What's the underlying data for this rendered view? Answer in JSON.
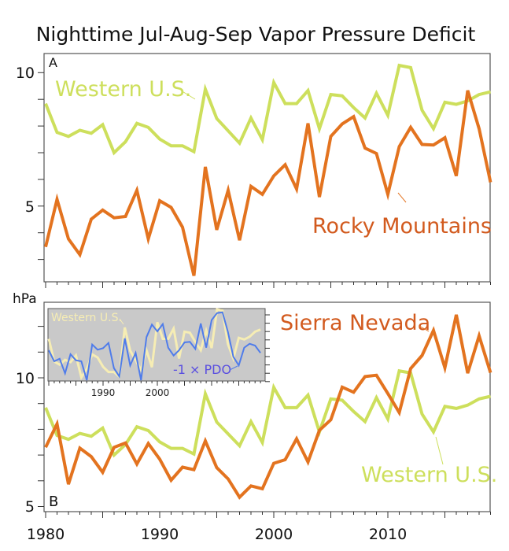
{
  "title": "Nighttime Jul-Aug-Sep Vapor Pressure Deficit",
  "y_unit": "hPa",
  "colors": {
    "western": "#cddf5c",
    "orange": "#e3731f",
    "orange_text": "#d25a1e",
    "inset_bg": "#c9c9c9",
    "inset_western": "#f6edb4",
    "pdo": "#4f7cea",
    "pdo_text": "#5a4fe0"
  },
  "chart_data": [
    {
      "type": "line",
      "panel_label": "A",
      "title": "Nighttime Jul-Aug-Sep Vapor Pressure Deficit",
      "ylabel": "hPa",
      "ylim": [
        2.2,
        10.7
      ],
      "xlim": [
        1980,
        2019
      ],
      "yticks": [
        {
          "value": 10,
          "label": "10"
        },
        {
          "value": 5,
          "label": "5"
        }
      ],
      "grid": false,
      "x": [
        1980,
        1981,
        1982,
        1983,
        1984,
        1985,
        1986,
        1987,
        1988,
        1989,
        1990,
        1991,
        1992,
        1993,
        1994,
        1995,
        1996,
        1997,
        1998,
        1999,
        2000,
        2001,
        2002,
        2003,
        2004,
        2005,
        2006,
        2007,
        2008,
        2009,
        2010,
        2011,
        2012,
        2013,
        2014,
        2015,
        2016,
        2017,
        2018,
        2019
      ],
      "series": [
        {
          "name": "Western U.S.",
          "color": "#cddf5c",
          "values": [
            8.84,
            7.76,
            7.61,
            7.84,
            7.73,
            8.05,
            7.0,
            7.41,
            8.1,
            7.95,
            7.51,
            7.26,
            7.26,
            7.04,
            9.38,
            8.28,
            7.82,
            7.36,
            8.3,
            7.49,
            9.63,
            8.84,
            8.84,
            9.33,
            7.9,
            9.18,
            9.13,
            8.69,
            8.3,
            9.23,
            8.4,
            10.27,
            10.19,
            8.59,
            7.9,
            8.89,
            8.81,
            8.94,
            9.18,
            9.28
          ]
        },
        {
          "name": "Rocky Mountains",
          "color": "#e3731f",
          "values": [
            3.47,
            5.25,
            3.77,
            3.18,
            4.51,
            4.85,
            4.56,
            4.61,
            5.59,
            3.77,
            5.2,
            4.95,
            4.21,
            2.39,
            6.47,
            4.11,
            5.59,
            3.72,
            5.74,
            5.44,
            6.13,
            6.55,
            5.64,
            8.1,
            5.34,
            7.61,
            8.08,
            8.35,
            7.17,
            6.97,
            5.44,
            7.23,
            7.95,
            7.31,
            7.29,
            7.56,
            6.13,
            9.33,
            7.9,
            5.89
          ]
        }
      ]
    },
    {
      "type": "line",
      "panel_label": "B",
      "ylim": [
        4.8,
        12.9
      ],
      "xlim": [
        1980,
        2019
      ],
      "yticks": [
        {
          "value": 10,
          "label": "10"
        },
        {
          "value": 5,
          "label": "5"
        }
      ],
      "xticks": [
        {
          "value": 1980,
          "label": "1980"
        },
        {
          "value": 1990,
          "label": "1990"
        },
        {
          "value": 2000,
          "label": "2000"
        },
        {
          "value": 2010,
          "label": "2010"
        }
      ],
      "grid": false,
      "x": [
        1980,
        1981,
        1982,
        1983,
        1984,
        1985,
        1986,
        1987,
        1988,
        1989,
        1990,
        1991,
        1992,
        1993,
        1994,
        1995,
        1996,
        1997,
        1998,
        1999,
        2000,
        2001,
        2002,
        2003,
        2004,
        2005,
        2006,
        2007,
        2008,
        2009,
        2010,
        2011,
        2012,
        2013,
        2014,
        2015,
        2016,
        2017,
        2018,
        2019
      ],
      "series": [
        {
          "name": "Western U.S.",
          "color": "#cddf5c",
          "values": [
            8.84,
            7.76,
            7.61,
            7.84,
            7.73,
            8.05,
            7.0,
            7.41,
            8.1,
            7.95,
            7.51,
            7.26,
            7.26,
            7.04,
            9.38,
            8.28,
            7.82,
            7.36,
            8.3,
            7.49,
            9.63,
            8.84,
            8.84,
            9.33,
            7.9,
            9.18,
            9.13,
            8.69,
            8.3,
            9.23,
            8.4,
            10.27,
            10.19,
            8.59,
            7.9,
            8.89,
            8.81,
            8.94,
            9.18,
            9.28
          ]
        },
        {
          "name": "Sierra Nevada",
          "color": "#e3731f",
          "values": [
            7.3,
            8.21,
            5.87,
            7.27,
            6.94,
            6.33,
            7.3,
            7.47,
            6.65,
            7.45,
            6.84,
            6.02,
            6.53,
            6.43,
            7.55,
            6.51,
            6.07,
            5.36,
            5.8,
            5.69,
            6.68,
            6.82,
            7.63,
            6.73,
            7.96,
            8.37,
            9.64,
            9.44,
            10.05,
            10.1,
            9.39,
            8.65,
            10.36,
            10.87,
            11.84,
            10.39,
            12.45,
            10.18,
            11.63,
            10.2
          ]
        }
      ]
    },
    {
      "type": "line",
      "panel_label": "inset",
      "xlim": [
        1980,
        2020
      ],
      "xticks": [
        {
          "value": 1990,
          "label": "1990"
        },
        {
          "value": 2000,
          "label": "2000"
        }
      ],
      "ylim_western": [
        6.84,
        10.3
      ],
      "ylim_pdo": [
        -2.7,
        2.8
      ],
      "x": [
        1980,
        1981,
        1982,
        1983,
        1984,
        1985,
        1986,
        1987,
        1988,
        1989,
        1990,
        1991,
        1992,
        1993,
        1994,
        1995,
        1996,
        1997,
        1998,
        1999,
        2000,
        2001,
        2002,
        2003,
        2004,
        2005,
        2006,
        2007,
        2008,
        2009,
        2010,
        2011,
        2012,
        2013,
        2014,
        2015,
        2016,
        2017,
        2018,
        2019
      ],
      "series": [
        {
          "name": "Western U.S.",
          "color": "#f6edb4",
          "values": [
            8.84,
            7.76,
            7.61,
            7.84,
            7.73,
            8.05,
            7.0,
            7.41,
            8.1,
            7.95,
            7.51,
            7.26,
            7.26,
            7.04,
            9.38,
            8.28,
            7.82,
            7.36,
            8.3,
            7.49,
            9.63,
            8.84,
            8.84,
            9.33,
            7.9,
            9.18,
            9.13,
            8.69,
            8.3,
            9.23,
            8.4,
            10.27,
            10.19,
            8.59,
            7.9,
            8.89,
            8.81,
            8.94,
            9.18,
            9.28
          ]
        },
        {
          "name": "-1 × PDO",
          "color": "#4f7cea",
          "values": [
            -0.4,
            -1.24,
            -1.04,
            -2.16,
            -0.7,
            -1.16,
            -1.24,
            -2.76,
            0.04,
            -0.36,
            -0.24,
            0.16,
            -1.76,
            -2.4,
            0.5,
            -1.56,
            -0.6,
            -2.76,
            0.6,
            1.56,
            1.04,
            1.6,
            -0.2,
            -0.8,
            -0.4,
            0.2,
            0.24,
            -0.3,
            1.64,
            -0.2,
            1.9,
            2.44,
            2.5,
            1.0,
            -0.9,
            -1.56,
            -0.2,
            0.1,
            -0.04,
            -0.6
          ]
        }
      ]
    }
  ],
  "annotations": {
    "a_western": "Western U.S.",
    "a_rocky": "Rocky Mountains",
    "b_sierra": "Sierra Nevada",
    "b_western": "Western U.S.",
    "inset_western": "Western U.S.",
    "inset_pdo": "-1 × PDO"
  }
}
